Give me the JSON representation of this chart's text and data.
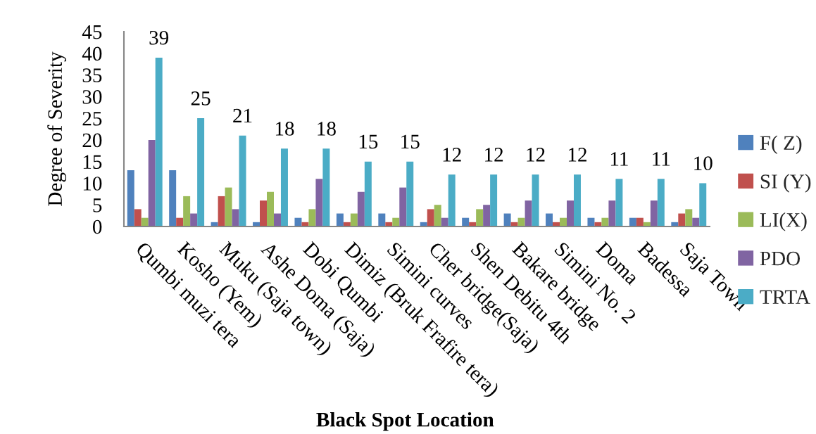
{
  "chart_data": {
    "type": "bar",
    "xlabel": "Black Spot Location",
    "ylabel": "Degree of Severity",
    "categories": [
      "Qumbi muzi tera",
      "Kosho (Yem)",
      "Muku (Saja town)",
      "Ashe Doma (Saja)",
      "Dobi Qumbi",
      "Dimiz (Bruk Frafire tera)",
      "Simini curves",
      "Cher bridge(Saja)",
      "Shen Debitu 4th",
      "Bakare bridge",
      "Simini No. 2",
      "Doma",
      "Badessa",
      "Saja Town"
    ],
    "series": [
      {
        "name": "F( Z)",
        "color": "#4f81bd",
        "values": [
          13,
          13,
          1,
          1,
          2,
          3,
          3,
          1,
          2,
          3,
          3,
          2,
          2,
          1
        ]
      },
      {
        "name": "SI (Y)",
        "color": "#c0504d",
        "values": [
          4,
          2,
          7,
          6,
          1,
          1,
          1,
          4,
          1,
          1,
          1,
          1,
          2,
          3
        ]
      },
      {
        "name": "LI(X)",
        "color": "#9bbb59",
        "values": [
          2,
          7,
          9,
          8,
          4,
          3,
          2,
          5,
          4,
          2,
          2,
          2,
          1,
          4
        ]
      },
      {
        "name": "PDO",
        "color": "#8064a2",
        "values": [
          20,
          3,
          4,
          3,
          11,
          8,
          9,
          2,
          5,
          6,
          6,
          6,
          6,
          2
        ]
      },
      {
        "name": "TRTA",
        "color": "#4bacc6",
        "values": [
          39,
          25,
          21,
          18,
          18,
          15,
          15,
          12,
          12,
          12,
          12,
          11,
          11,
          10
        ],
        "value_labels": [
          "39",
          "25",
          "21",
          "18",
          "18",
          "15",
          "15",
          "12",
          "12",
          "12",
          "12",
          "11",
          "11",
          "10"
        ]
      }
    ],
    "ylim": [
      0,
      45
    ],
    "yticks": [
      0,
      5,
      10,
      15,
      20,
      25,
      30,
      35,
      40,
      45
    ],
    "legend": "right"
  }
}
